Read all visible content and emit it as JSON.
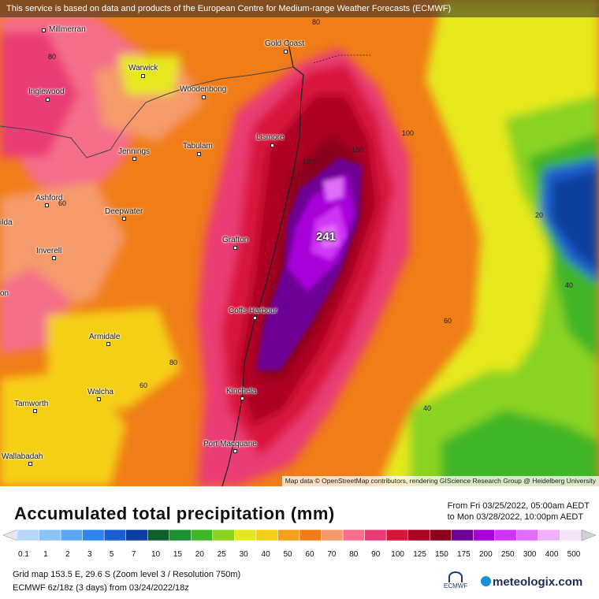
{
  "banner": "This service is based on data and products of the European Centre for Medium-range Weather Forecasts (ECMWF)",
  "attribution": "Map data © OpenStreetMap contributors, rendering GIScience Research Group @ Heidelberg University",
  "cities": [
    {
      "name": "Millmerran"
    },
    {
      "name": "Gold Coast"
    },
    {
      "name": "Warwick"
    },
    {
      "name": "Inglewood"
    },
    {
      "name": "Woodenbong"
    },
    {
      "name": "Lismore"
    },
    {
      "name": "Jennings"
    },
    {
      "name": "Tabulam"
    },
    {
      "name": "Ashford"
    },
    {
      "name": "Deepwater"
    },
    {
      "name": "Grafton"
    },
    {
      "name": "Inverell"
    },
    {
      "name": "Coffs Harbour"
    },
    {
      "name": "Armidale"
    },
    {
      "name": "Walcha"
    },
    {
      "name": "Kinchela"
    },
    {
      "name": "Tamworth"
    },
    {
      "name": "Port Macquarie"
    },
    {
      "name": "Wallabadah"
    },
    {
      "name": "ilda"
    },
    {
      "name": "on"
    }
  ],
  "contour_labels": [
    "80",
    "80",
    "100",
    "150",
    "150",
    "20",
    "40",
    "60",
    "40",
    "80",
    "60",
    "60"
  ],
  "max_value": "241",
  "legend": {
    "title": "Accumulated total precipitation (mm)",
    "period_from": "From Fri 03/25/2022, 05:00am AEDT",
    "period_to": "to Mon 03/28/2022, 10:00pm AEDT",
    "levels": [
      "0.1",
      "1",
      "2",
      "3",
      "5",
      "7",
      "10",
      "15",
      "20",
      "25",
      "30",
      "40",
      "50",
      "60",
      "70",
      "80",
      "90",
      "100",
      "125",
      "150",
      "175",
      "200",
      "250",
      "300",
      "400",
      "500"
    ],
    "colors": [
      "#e6e6f5",
      "#b9d7fb",
      "#8cc3f6",
      "#5aa6f2",
      "#2f86ea",
      "#1a5fd0",
      "#0d3f9e",
      "#0f5f2a",
      "#1c8f2e",
      "#3fb528",
      "#8ad321",
      "#e6e81e",
      "#f5cf16",
      "#f2a11a",
      "#f07d17",
      "#f59a6b",
      "#f56e8a",
      "#ea3c74",
      "#d9153c",
      "#ad0022",
      "#8a001c",
      "#6e0096",
      "#a800d9",
      "#cf34f5",
      "#e16ef8",
      "#f0b0fb",
      "#f5e4fb",
      "#d0d0d0"
    ],
    "grid_info": "Grid map 153.5 E, 29.6 S (Zoom level 3 / Resolution 750m)",
    "model_info": "ECMWF 6z/18z (3 days) from 03/24/2022/18z",
    "ecmwf_label": "ECMWF",
    "brand": "meteologix.com"
  }
}
